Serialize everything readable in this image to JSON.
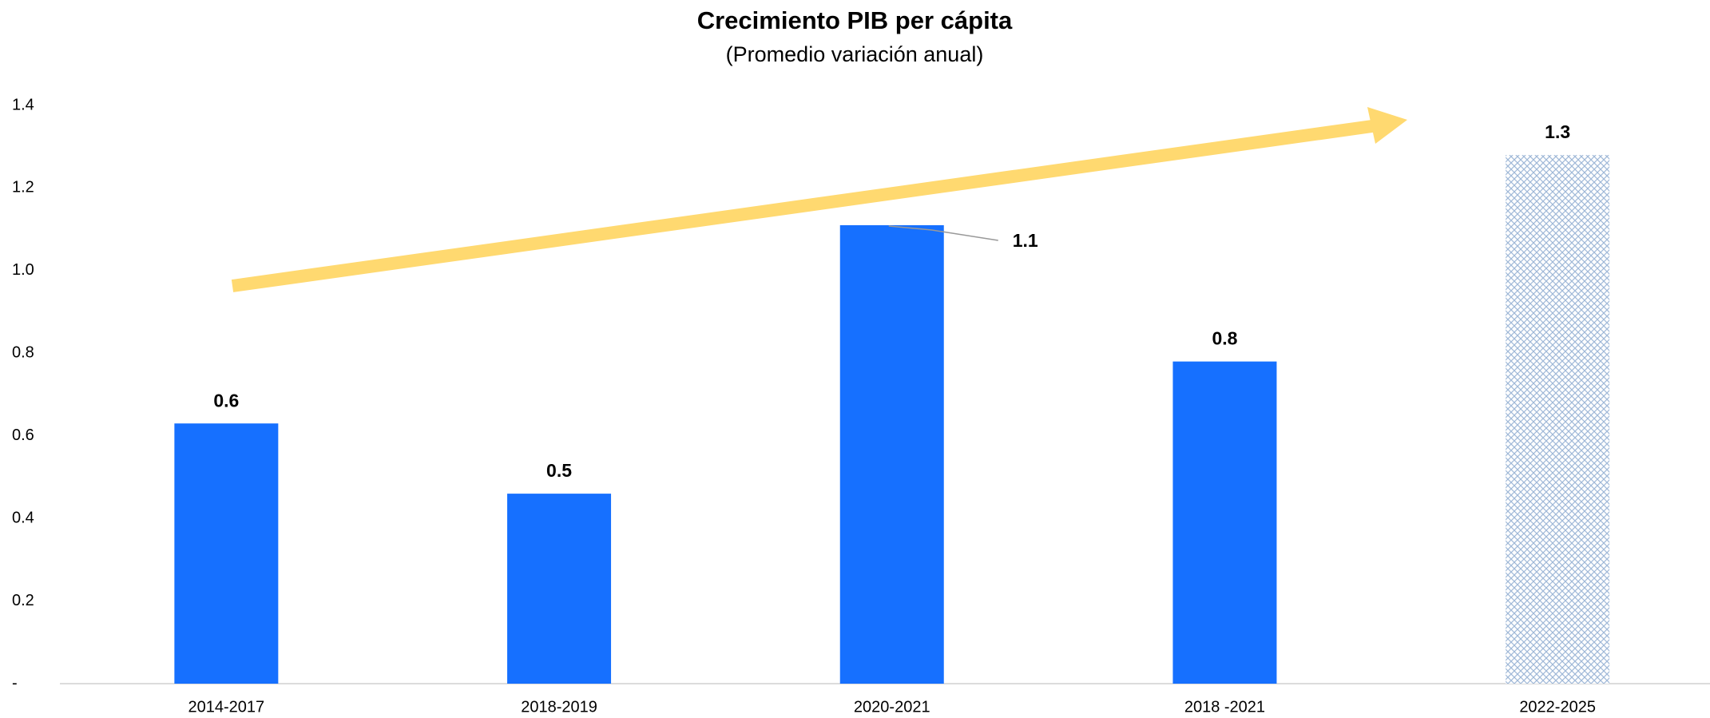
{
  "chart_data": {
    "type": "bar",
    "title": "Crecimiento PIB per cápita",
    "subtitle": "(Promedio variación anual)",
    "categories": [
      "2014-2017",
      "2018-2019",
      "2020-2021",
      "2018 -2021",
      "2022-2025"
    ],
    "values": [
      0.63,
      0.46,
      1.11,
      0.78,
      1.28
    ],
    "value_labels": [
      "0.6",
      "0.5",
      "1.1",
      "0.8",
      "1.3"
    ],
    "colors": [
      "#1670ff",
      "#1670ff",
      "#1670ff",
      "#1670ff",
      "#9fb8d8"
    ],
    "hatched": [
      false,
      false,
      false,
      false,
      true
    ],
    "ylim": [
      0,
      1.4
    ],
    "yticks": [
      {
        "value": 0,
        "label": "-"
      },
      0.2,
      0.4,
      0.6,
      0.8,
      {
        "value": 1,
        "label": "1.0"
      },
      1.2,
      1.4
    ],
    "grid": false
  }
}
